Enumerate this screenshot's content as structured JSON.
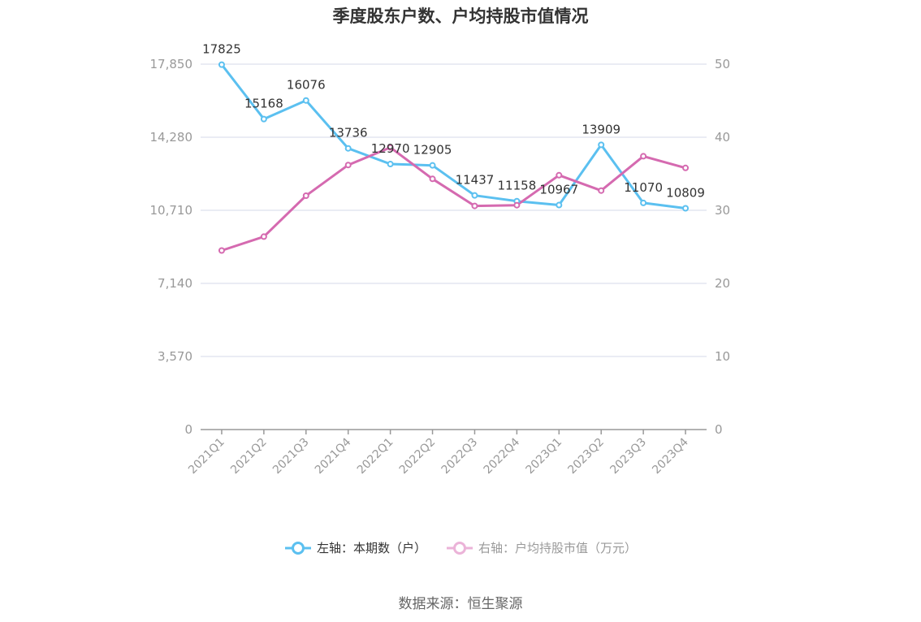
{
  "title": "季度股东户数、户均持股市值情况",
  "source": "数据来源：恒生聚源",
  "colors": {
    "left_series": "#5bc0f0",
    "right_series": "#d56ab0",
    "grid": "#e3e6f0",
    "axis": "#999999"
  },
  "chart_data": {
    "type": "line",
    "categories": [
      "2021Q1",
      "2021Q2",
      "2021Q3",
      "2021Q4",
      "2022Q1",
      "2022Q2",
      "2022Q3",
      "2022Q4",
      "2023Q1",
      "2023Q2",
      "2023Q3",
      "2023Q4"
    ],
    "left_axis": {
      "ylim": [
        0,
        17850
      ],
      "ticks": [
        "0",
        "3,570",
        "7,140",
        "10,710",
        "14,280",
        "17,850"
      ]
    },
    "right_axis": {
      "ylim": [
        0,
        50
      ],
      "ticks": [
        "0",
        "10",
        "20",
        "30",
        "40",
        "50"
      ]
    },
    "series": [
      {
        "name": "左轴：本期数（户）",
        "axis": "left",
        "values": [
          17825,
          15168,
          16076,
          13736,
          12970,
          12905,
          11437,
          11158,
          10967,
          13909,
          11070,
          10809
        ],
        "labels": [
          "17825",
          "15168",
          "16076",
          "13736",
          "12970",
          "12905",
          "11437",
          "11158",
          "10967",
          "13909",
          "11070",
          "10809"
        ]
      },
      {
        "name": "右轴：户均持股市值（万元）",
        "axis": "right",
        "values": [
          24.5,
          26.4,
          32.0,
          36.2,
          38.6,
          34.3,
          30.6,
          30.7,
          34.8,
          32.7,
          37.4,
          35.8
        ]
      }
    ],
    "grid": true,
    "legend": "bottom-center"
  }
}
